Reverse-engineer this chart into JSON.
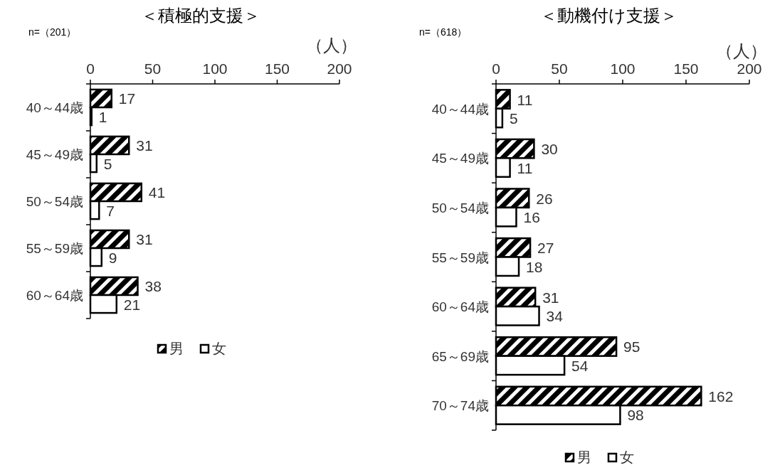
{
  "chart_data": [
    {
      "type": "bar",
      "orientation": "horizontal",
      "title": "＜積極的支援＞",
      "xlabel": "（人）",
      "annotations": [
        "n=（201）"
      ],
      "categories": [
        "40～44歳",
        "45～49歳",
        "50～54歳",
        "55～59歳",
        "60～64歳"
      ],
      "series": [
        {
          "name": "男",
          "color": "#000000",
          "values": [
            17,
            31,
            41,
            31,
            38
          ]
        },
        {
          "name": "女",
          "color": "#ffffff",
          "values": [
            1,
            5,
            7,
            9,
            21
          ]
        }
      ],
      "xlim": [
        0,
        200
      ],
      "xticks": [
        0,
        50,
        100,
        150,
        200
      ],
      "data_labels": true,
      "legend": "bottom"
    },
    {
      "type": "bar",
      "orientation": "horizontal",
      "title": "＜動機付け支援＞",
      "xlabel": "（人）",
      "annotations": [
        "n=（618）"
      ],
      "categories": [
        "40～44歳",
        "45～49歳",
        "50～54歳",
        "55～59歳",
        "60～64歳",
        "65～69歳",
        "70～74歳"
      ],
      "series": [
        {
          "name": "男",
          "color": "#000000",
          "values": [
            11,
            30,
            26,
            27,
            31,
            95,
            162
          ]
        },
        {
          "name": "女",
          "color": "#ffffff",
          "values": [
            5,
            11,
            16,
            18,
            34,
            54,
            98
          ]
        }
      ],
      "xlim": [
        0,
        200
      ],
      "xticks": [
        0,
        50,
        100,
        150,
        200
      ],
      "data_labels": true,
      "legend": "bottom"
    }
  ]
}
